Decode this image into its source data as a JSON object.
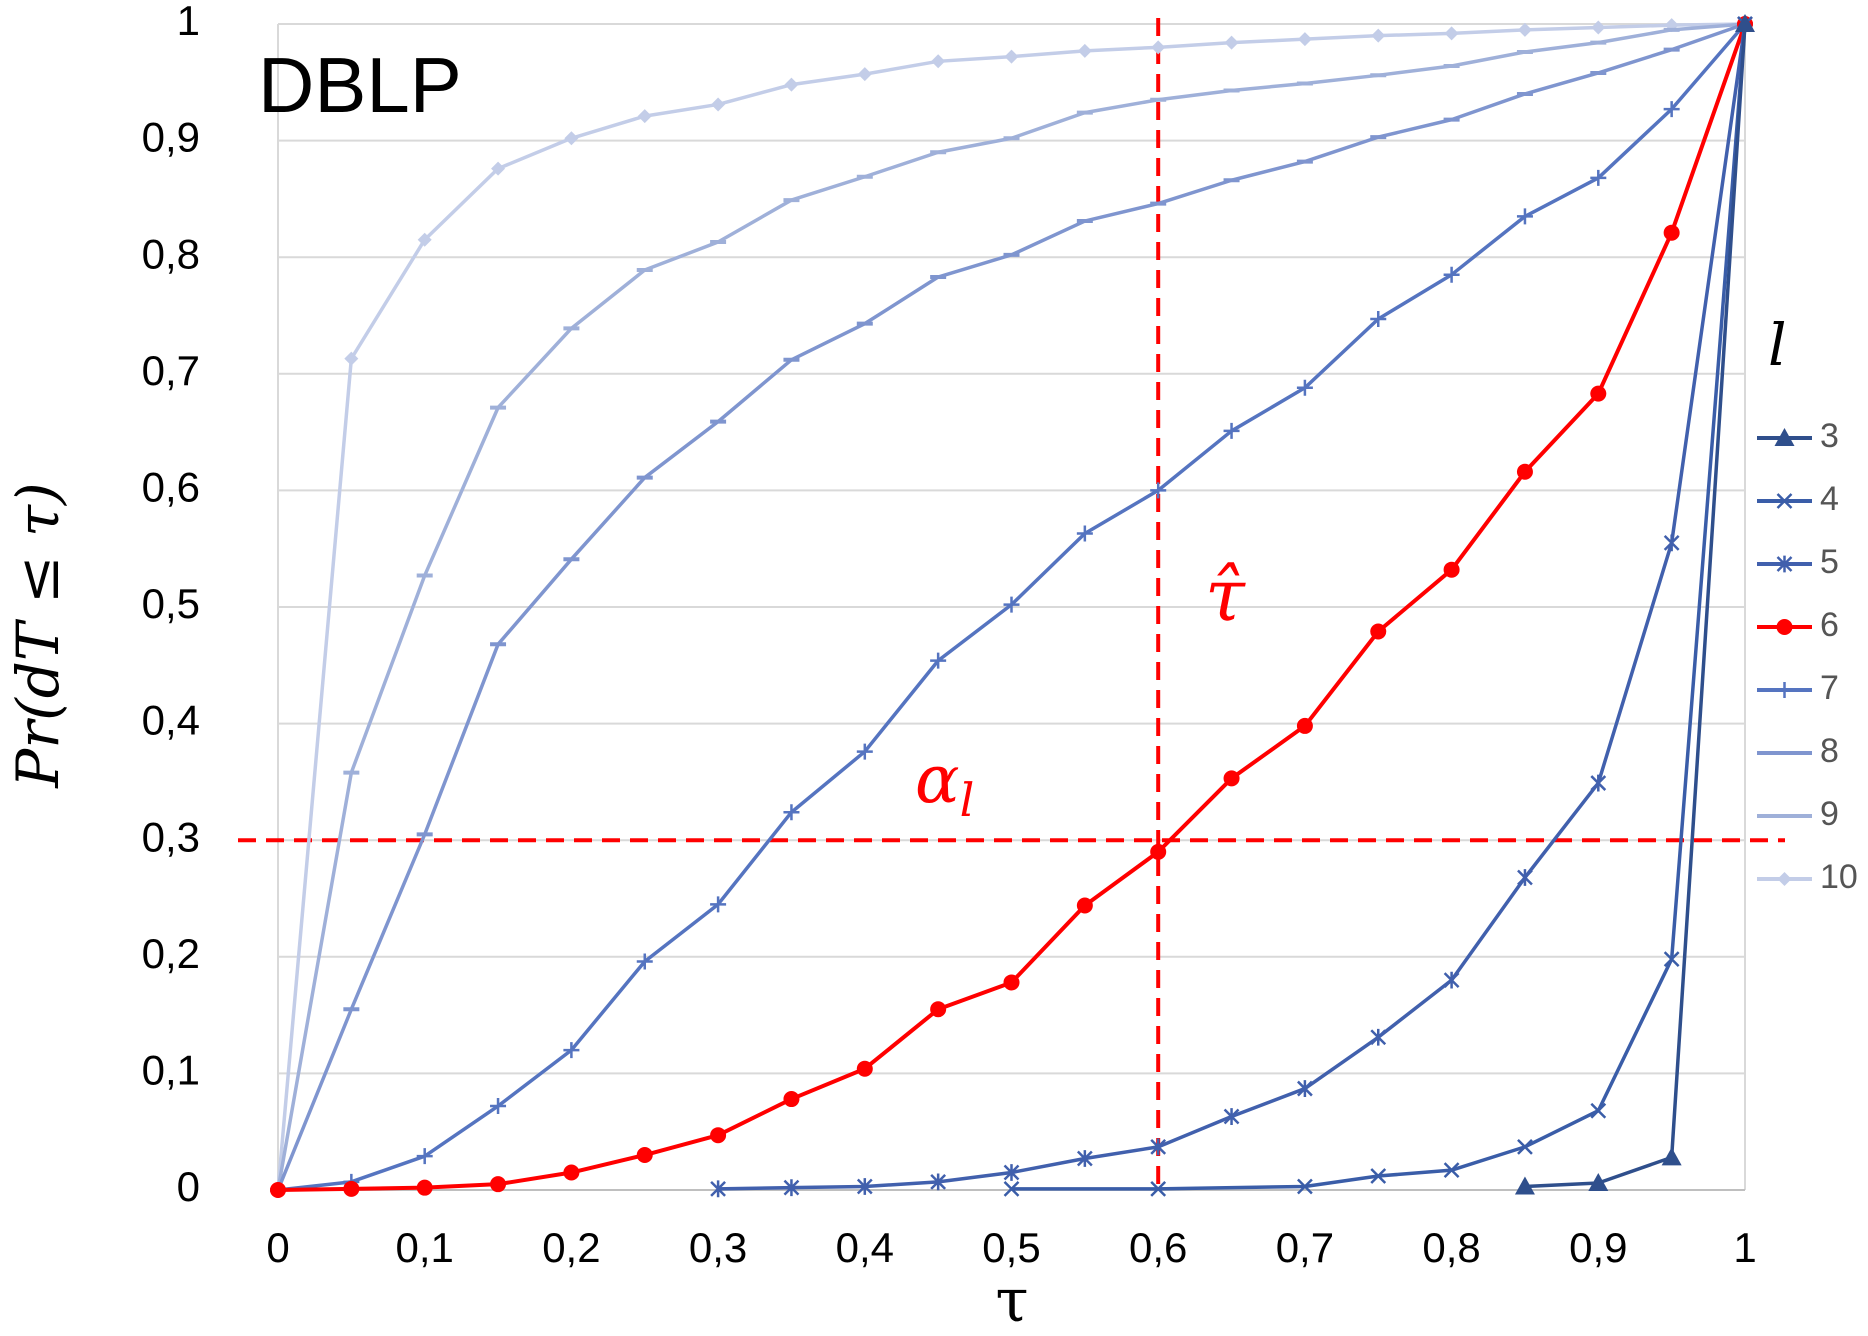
{
  "chart_data": {
    "type": "line",
    "title": "DBLP",
    "xlabel": "τ",
    "ylabel": "Pr(dT ≤ τ)",
    "legend_title": "l",
    "legend_position": "right",
    "xlim": [
      0,
      1
    ],
    "ylim": [
      0,
      1
    ],
    "grid": "horizontal",
    "x_tick_labels": [
      "0",
      "0,1",
      "0,2",
      "0,3",
      "0,4",
      "0,5",
      "0,6",
      "0,7",
      "0,8",
      "0,9",
      "1"
    ],
    "y_tick_labels": [
      "0",
      "0,1",
      "0,2",
      "0,3",
      "0,4",
      "0,5",
      "0,6",
      "0,7",
      "0,8",
      "0,9",
      "1"
    ],
    "annotations": {
      "threshold_y": 0.3,
      "threshold_x": 0.6,
      "alpha_label": "α",
      "alpha_subscript": "l",
      "tau_hat_label": "τ̂",
      "color": "#ff0000"
    },
    "series": [
      {
        "name": "3",
        "color": "#2f4f8c",
        "marker": "triangle",
        "x": [
          0.85,
          0.9,
          0.95,
          1
        ],
        "y": [
          0.003,
          0.006,
          0.028,
          1
        ]
      },
      {
        "name": "4",
        "color": "#3a5da8",
        "marker": "x",
        "x": [
          0.5,
          0.6,
          0.7,
          0.75,
          0.8,
          0.85,
          0.9,
          0.95,
          1
        ],
        "y": [
          0.001,
          0.001,
          0.003,
          0.012,
          0.017,
          0.037,
          0.068,
          0.198,
          1
        ]
      },
      {
        "name": "5",
        "color": "#4160ad",
        "marker": "star",
        "x": [
          0.3,
          0.35,
          0.4,
          0.45,
          0.5,
          0.55,
          0.6,
          0.65,
          0.7,
          0.75,
          0.8,
          0.85,
          0.9,
          0.95,
          1
        ],
        "y": [
          0.001,
          0.002,
          0.003,
          0.007,
          0.015,
          0.027,
          0.037,
          0.063,
          0.087,
          0.131,
          0.18,
          0.268,
          0.349,
          0.555,
          1
        ]
      },
      {
        "name": "6",
        "color": "#ff0000",
        "marker": "circle",
        "x": [
          0,
          0.05,
          0.1,
          0.15,
          0.2,
          0.25,
          0.3,
          0.35,
          0.4,
          0.45,
          0.5,
          0.55,
          0.6,
          0.65,
          0.7,
          0.75,
          0.8,
          0.85,
          0.9,
          0.95,
          1
        ],
        "y": [
          0,
          0.001,
          0.002,
          0.005,
          0.015,
          0.03,
          0.047,
          0.078,
          0.104,
          0.155,
          0.178,
          0.244,
          0.29,
          0.353,
          0.398,
          0.479,
          0.532,
          0.616,
          0.683,
          0.821,
          1
        ]
      },
      {
        "name": "7",
        "color": "#5574c0",
        "marker": "plus",
        "x": [
          0,
          0.05,
          0.1,
          0.15,
          0.2,
          0.25,
          0.3,
          0.35,
          0.4,
          0.45,
          0.5,
          0.55,
          0.6,
          0.65,
          0.7,
          0.75,
          0.8,
          0.85,
          0.9,
          0.95,
          1
        ],
        "y": [
          0,
          0.007,
          0.029,
          0.072,
          0.12,
          0.196,
          0.245,
          0.324,
          0.376,
          0.454,
          0.502,
          0.563,
          0.6,
          0.651,
          0.688,
          0.747,
          0.785,
          0.835,
          0.868,
          0.927,
          1
        ]
      },
      {
        "name": "8",
        "color": "#7f95cf",
        "marker": "dash",
        "x": [
          0,
          0.05,
          0.1,
          0.15,
          0.2,
          0.25,
          0.3,
          0.35,
          0.4,
          0.45,
          0.5,
          0.55,
          0.6,
          0.65,
          0.7,
          0.75,
          0.8,
          0.85,
          0.9,
          0.95,
          1
        ],
        "y": [
          0,
          0.155,
          0.305,
          0.468,
          0.541,
          0.611,
          0.659,
          0.712,
          0.743,
          0.783,
          0.802,
          0.831,
          0.846,
          0.866,
          0.882,
          0.903,
          0.918,
          0.94,
          0.958,
          0.978,
          1
        ]
      },
      {
        "name": "9",
        "color": "#9fb0d9",
        "marker": "dash",
        "x": [
          0,
          0.05,
          0.1,
          0.15,
          0.2,
          0.25,
          0.3,
          0.35,
          0.4,
          0.45,
          0.5,
          0.55,
          0.6,
          0.65,
          0.7,
          0.75,
          0.8,
          0.85,
          0.9,
          0.95,
          1
        ],
        "y": [
          0,
          0.358,
          0.527,
          0.671,
          0.739,
          0.789,
          0.813,
          0.849,
          0.869,
          0.89,
          0.902,
          0.924,
          0.935,
          0.943,
          0.949,
          0.956,
          0.964,
          0.976,
          0.984,
          0.995,
          1
        ]
      },
      {
        "name": "10",
        "color": "#c3cde8",
        "marker": "diamond",
        "x": [
          0,
          0.05,
          0.1,
          0.15,
          0.2,
          0.25,
          0.3,
          0.35,
          0.4,
          0.45,
          0.5,
          0.55,
          0.6,
          0.65,
          0.7,
          0.75,
          0.8,
          0.85,
          0.9,
          0.95,
          1
        ],
        "y": [
          0,
          0.713,
          0.815,
          0.876,
          0.902,
          0.921,
          0.931,
          0.948,
          0.957,
          0.968,
          0.972,
          0.977,
          0.98,
          0.984,
          0.987,
          0.99,
          0.992,
          0.995,
          0.997,
          0.999,
          1
        ]
      }
    ]
  }
}
